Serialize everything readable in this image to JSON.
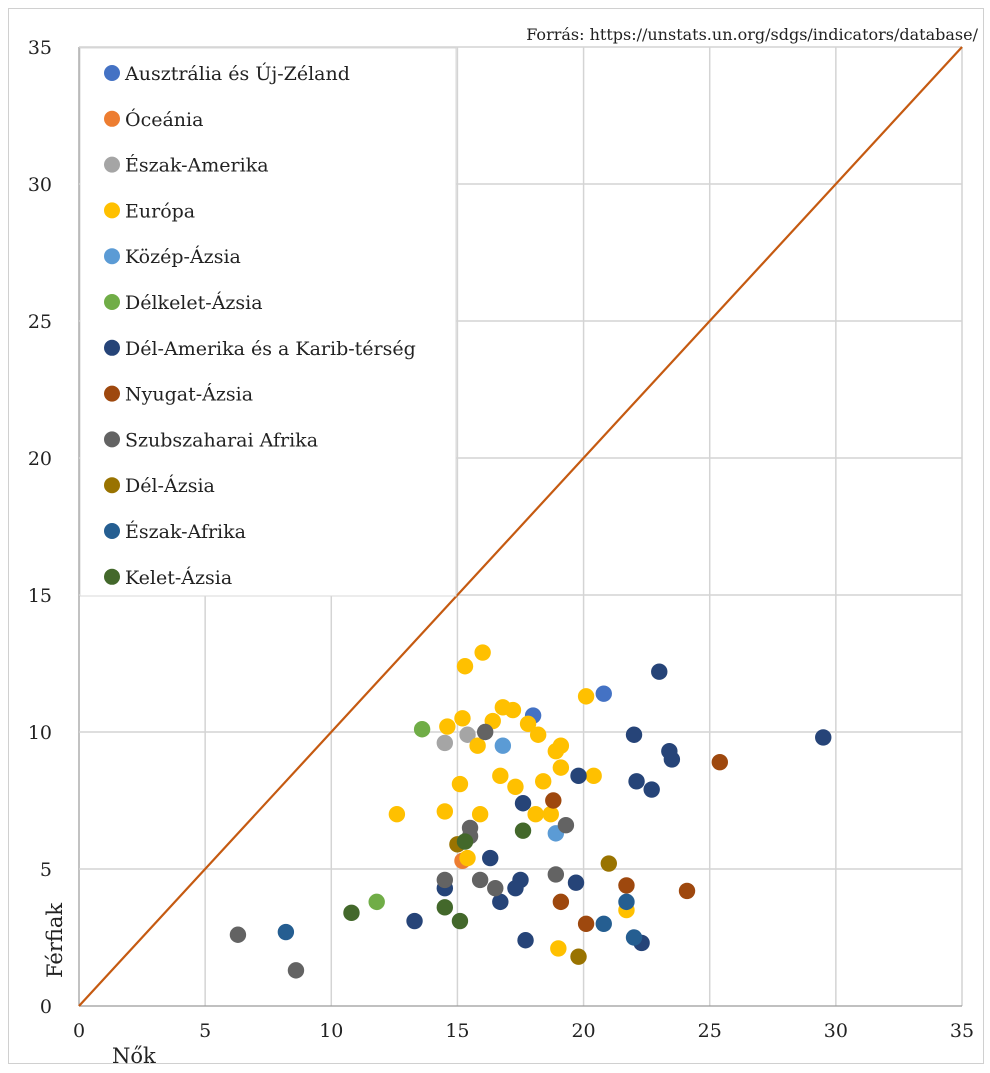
{
  "source_note": "Forrás: https://unstats.un.org/sdgs/indicators/database/",
  "chart_data": {
    "type": "scatter",
    "xlabel": "Nők",
    "ylabel": "Férfiak",
    "xlim": [
      0,
      35
    ],
    "ylim": [
      0,
      35
    ],
    "x_ticks": [
      0,
      5,
      10,
      15,
      20,
      25,
      30,
      35
    ],
    "y_ticks": [
      0,
      5,
      10,
      15,
      20,
      25,
      30,
      35
    ],
    "grid": true,
    "legend_position": "top-left",
    "reference_line": {
      "from": [
        0,
        0
      ],
      "to": [
        35,
        35
      ],
      "color": "#c55a11"
    },
    "series": [
      {
        "name": "Ausztrália és Új-Zéland",
        "color": "#4472c4",
        "points": [
          [
            20.8,
            11.4
          ],
          [
            18.0,
            10.6
          ]
        ]
      },
      {
        "name": "Óceánia",
        "color": "#ed7d31",
        "points": [
          [
            15.2,
            5.3
          ]
        ]
      },
      {
        "name": "Észak-Amerika",
        "color": "#a5a5a5",
        "points": [
          [
            14.5,
            9.6
          ],
          [
            15.4,
            9.9
          ]
        ]
      },
      {
        "name": "Európa",
        "color": "#ffc000",
        "points": [
          [
            16.0,
            12.9
          ],
          [
            15.3,
            12.4
          ],
          [
            20.1,
            11.3
          ],
          [
            16.8,
            10.9
          ],
          [
            17.2,
            10.8
          ],
          [
            15.2,
            10.5
          ],
          [
            16.4,
            10.4
          ],
          [
            17.8,
            10.3
          ],
          [
            14.6,
            10.2
          ],
          [
            18.2,
            9.9
          ],
          [
            15.8,
            9.5
          ],
          [
            19.1,
            9.5
          ],
          [
            18.9,
            9.3
          ],
          [
            19.1,
            8.7
          ],
          [
            20.4,
            8.4
          ],
          [
            16.7,
            8.4
          ],
          [
            18.4,
            8.2
          ],
          [
            15.1,
            8.1
          ],
          [
            17.3,
            8.0
          ],
          [
            14.5,
            7.1
          ],
          [
            12.6,
            7.0
          ],
          [
            15.9,
            7.0
          ],
          [
            18.1,
            7.0
          ],
          [
            18.7,
            7.0
          ],
          [
            15.4,
            5.4
          ],
          [
            21.7,
            3.5
          ],
          [
            19.0,
            2.1
          ]
        ]
      },
      {
        "name": "Közép-Ázsia",
        "color": "#5b9bd5",
        "points": [
          [
            16.8,
            9.5
          ],
          [
            18.9,
            6.3
          ]
        ]
      },
      {
        "name": "Délkelet-Ázsia",
        "color": "#70ad47",
        "points": [
          [
            13.6,
            10.1
          ],
          [
            11.8,
            3.8
          ]
        ]
      },
      {
        "name": "Dél-Amerika és a Karib-térség",
        "color": "#264478",
        "points": [
          [
            23.0,
            12.2
          ],
          [
            29.5,
            9.8
          ],
          [
            22.0,
            9.9
          ],
          [
            23.4,
            9.3
          ],
          [
            23.5,
            9.0
          ],
          [
            19.8,
            8.4
          ],
          [
            22.1,
            8.2
          ],
          [
            22.7,
            7.9
          ],
          [
            17.6,
            7.4
          ],
          [
            16.3,
            5.4
          ],
          [
            19.7,
            4.5
          ],
          [
            17.5,
            4.6
          ],
          [
            17.3,
            4.3
          ],
          [
            14.5,
            4.3
          ],
          [
            13.3,
            3.1
          ],
          [
            16.7,
            3.8
          ],
          [
            17.7,
            2.4
          ],
          [
            22.3,
            2.3
          ]
        ]
      },
      {
        "name": "Nyugat-Ázsia",
        "color": "#9e480e",
        "points": [
          [
            25.4,
            8.9
          ],
          [
            18.8,
            7.5
          ],
          [
            21.7,
            4.4
          ],
          [
            24.1,
            4.2
          ],
          [
            19.1,
            3.8
          ],
          [
            20.1,
            3.0
          ]
        ]
      },
      {
        "name": "Szubszaharai Afrika",
        "color": "#636363",
        "points": [
          [
            16.1,
            10.0
          ],
          [
            15.5,
            6.5
          ],
          [
            15.5,
            6.2
          ],
          [
            19.3,
            6.6
          ],
          [
            18.9,
            4.8
          ],
          [
            14.5,
            4.6
          ],
          [
            15.9,
            4.6
          ],
          [
            16.5,
            4.3
          ],
          [
            6.3,
            2.6
          ],
          [
            8.6,
            1.3
          ]
        ]
      },
      {
        "name": "Dél-Ázsia",
        "color": "#997300",
        "points": [
          [
            15.0,
            5.9
          ],
          [
            21.0,
            5.2
          ],
          [
            19.8,
            1.8
          ]
        ]
      },
      {
        "name": "Észak-Afrika",
        "color": "#255e91",
        "points": [
          [
            21.7,
            3.8
          ],
          [
            20.8,
            3.0
          ],
          [
            8.2,
            2.7
          ],
          [
            22.0,
            2.5
          ]
        ]
      },
      {
        "name": "Kelet-Ázsia",
        "color": "#43682b",
        "points": [
          [
            15.3,
            6.0
          ],
          [
            17.6,
            6.4
          ],
          [
            10.8,
            3.4
          ],
          [
            14.5,
            3.6
          ],
          [
            15.1,
            3.1
          ]
        ]
      }
    ]
  }
}
